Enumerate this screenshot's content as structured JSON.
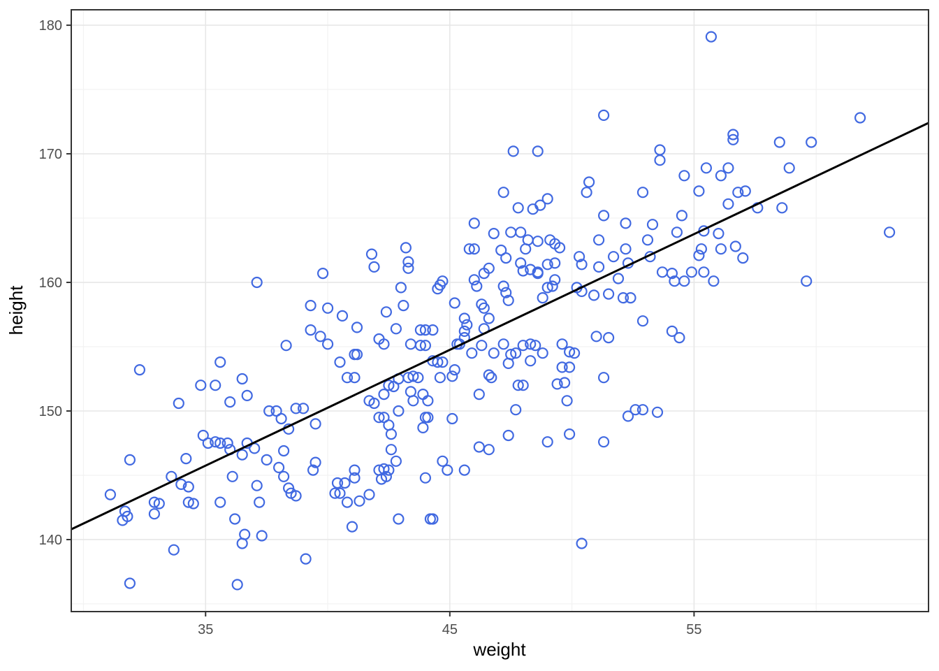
{
  "chart_data": {
    "type": "scatter",
    "title": "",
    "xlabel": "weight",
    "ylabel": "height",
    "legend": null,
    "grid": true,
    "xlim": [
      29.5,
      64.6
    ],
    "ylim": [
      134.4,
      181.2
    ],
    "x_major_ticks": [
      35,
      45,
      55
    ],
    "x_minor_gridlines": [
      30,
      40,
      50,
      60
    ],
    "y_major_ticks": [
      140,
      150,
      160,
      170,
      180
    ],
    "y_minor_gridlines": [
      135,
      145,
      155,
      165,
      175
    ],
    "colors": {
      "point_stroke": "#4169e1",
      "regression_line": "#000000",
      "panel_border": "#333333",
      "grid_major": "#e7e7e7",
      "grid_minor": "#f2f2f2",
      "tick_mark": "#333333",
      "tick_label": "#4d4d4d",
      "axis_title": "#000000",
      "background": "#ffffff"
    },
    "regression_line": {
      "x1": 29.5,
      "y1": 140.8,
      "x2": 64.6,
      "y2": 172.4
    },
    "points": [
      [
        51.3,
        173.0
      ],
      [
        47.6,
        170.2
      ],
      [
        48.6,
        170.2
      ],
      [
        55.7,
        179.1
      ],
      [
        56.6,
        171.5
      ],
      [
        56.6,
        171.1
      ],
      [
        58.5,
        170.9
      ],
      [
        59.8,
        170.9
      ],
      [
        61.8,
        172.8
      ],
      [
        53.6,
        170.3
      ],
      [
        53.6,
        169.5
      ],
      [
        37.1,
        160.0
      ],
      [
        39.8,
        160.7
      ],
      [
        39.3,
        158.2
      ],
      [
        47.2,
        167.0
      ],
      [
        47.8,
        165.8
      ],
      [
        48.4,
        165.7
      ],
      [
        48.7,
        166.0
      ],
      [
        49.0,
        166.5
      ],
      [
        50.7,
        167.8
      ],
      [
        50.6,
        167.0
      ],
      [
        52.9,
        167.0
      ],
      [
        51.3,
        165.2
      ],
      [
        52.2,
        164.6
      ],
      [
        46.0,
        164.6
      ],
      [
        46.8,
        163.8
      ],
      [
        47.5,
        163.9
      ],
      [
        47.9,
        163.9
      ],
      [
        48.2,
        163.3
      ],
      [
        48.6,
        163.2
      ],
      [
        49.1,
        163.3
      ],
      [
        49.3,
        163.0
      ],
      [
        49.5,
        162.7
      ],
      [
        51.1,
        163.3
      ],
      [
        43.2,
        162.7
      ],
      [
        41.8,
        162.2
      ],
      [
        41.9,
        161.2
      ],
      [
        43.3,
        161.6
      ],
      [
        43.3,
        161.1
      ],
      [
        45.8,
        162.6
      ],
      [
        46.0,
        162.6
      ],
      [
        47.1,
        162.5
      ],
      [
        47.3,
        161.9
      ],
      [
        48.1,
        162.6
      ],
      [
        50.3,
        162.0
      ],
      [
        50.4,
        161.4
      ],
      [
        51.1,
        161.2
      ],
      [
        51.7,
        162.0
      ],
      [
        52.2,
        162.6
      ],
      [
        52.3,
        161.5
      ],
      [
        46.6,
        161.1
      ],
      [
        46.4,
        160.7
      ],
      [
        47.9,
        161.5
      ],
      [
        48.0,
        160.9
      ],
      [
        48.3,
        161.0
      ],
      [
        48.6,
        160.7
      ],
      [
        48.6,
        160.8
      ],
      [
        49.0,
        161.4
      ],
      [
        49.3,
        161.5
      ],
      [
        44.7,
        160.1
      ],
      [
        44.6,
        159.8
      ],
      [
        44.5,
        159.5
      ],
      [
        46.0,
        160.2
      ],
      [
        46.1,
        159.7
      ],
      [
        47.2,
        159.7
      ],
      [
        47.3,
        159.2
      ],
      [
        47.4,
        158.6
      ],
      [
        48.8,
        158.8
      ],
      [
        49.0,
        159.6
      ],
      [
        49.2,
        159.7
      ],
      [
        49.3,
        160.2
      ],
      [
        50.2,
        159.6
      ],
      [
        50.4,
        159.3
      ],
      [
        50.9,
        159.0
      ],
      [
        51.5,
        159.1
      ],
      [
        51.9,
        160.3
      ],
      [
        52.1,
        158.8
      ],
      [
        52.4,
        158.8
      ],
      [
        43.0,
        159.6
      ],
      [
        43.1,
        158.2
      ],
      [
        45.2,
        158.4
      ],
      [
        46.3,
        158.3
      ],
      [
        46.4,
        158.0
      ],
      [
        55.5,
        168.9
      ],
      [
        56.4,
        168.9
      ],
      [
        56.1,
        168.3
      ],
      [
        54.6,
        168.3
      ],
      [
        58.9,
        168.9
      ],
      [
        55.2,
        167.1
      ],
      [
        56.8,
        167.0
      ],
      [
        57.1,
        167.1
      ],
      [
        56.4,
        166.1
      ],
      [
        57.6,
        165.8
      ],
      [
        58.6,
        165.8
      ],
      [
        54.5,
        165.2
      ],
      [
        53.3,
        164.5
      ],
      [
        54.3,
        163.9
      ],
      [
        55.4,
        164.0
      ],
      [
        56.0,
        163.8
      ],
      [
        53.1,
        163.3
      ],
      [
        63.0,
        163.9
      ],
      [
        55.3,
        162.6
      ],
      [
        56.1,
        162.6
      ],
      [
        56.7,
        162.8
      ],
      [
        55.2,
        162.1
      ],
      [
        57.0,
        161.9
      ],
      [
        53.2,
        162.0
      ],
      [
        53.7,
        160.8
      ],
      [
        54.1,
        160.7
      ],
      [
        54.2,
        160.1
      ],
      [
        54.6,
        160.1
      ],
      [
        54.9,
        160.8
      ],
      [
        55.4,
        160.8
      ],
      [
        55.8,
        160.1
      ],
      [
        59.6,
        160.1
      ],
      [
        32.3,
        153.2
      ],
      [
        35.6,
        153.8
      ],
      [
        36.5,
        152.5
      ],
      [
        34.8,
        152.0
      ],
      [
        35.4,
        152.0
      ],
      [
        33.9,
        150.6
      ],
      [
        36.0,
        150.7
      ],
      [
        36.7,
        151.2
      ],
      [
        38.3,
        155.1
      ],
      [
        39.3,
        156.3
      ],
      [
        39.7,
        155.8
      ],
      [
        40.0,
        155.2
      ],
      [
        40.0,
        158.0
      ],
      [
        40.6,
        157.4
      ],
      [
        41.1,
        154.4
      ],
      [
        40.8,
        152.6
      ],
      [
        41.1,
        152.6
      ],
      [
        40.5,
        153.8
      ],
      [
        34.9,
        148.1
      ],
      [
        35.1,
        147.5
      ],
      [
        35.4,
        147.6
      ],
      [
        35.6,
        147.5
      ],
      [
        35.9,
        147.5
      ],
      [
        36.0,
        147.0
      ],
      [
        36.5,
        146.6
      ],
      [
        36.7,
        147.5
      ],
      [
        37.0,
        147.1
      ],
      [
        31.9,
        146.2
      ],
      [
        34.2,
        146.3
      ],
      [
        38.2,
        146.9
      ],
      [
        37.6,
        150.0
      ],
      [
        37.9,
        150.0
      ],
      [
        38.1,
        149.4
      ],
      [
        38.4,
        148.6
      ],
      [
        38.7,
        150.2
      ],
      [
        39.0,
        150.2
      ],
      [
        39.5,
        149.0
      ],
      [
        42.4,
        157.7
      ],
      [
        42.8,
        156.4
      ],
      [
        42.1,
        155.6
      ],
      [
        42.3,
        155.2
      ],
      [
        41.2,
        156.5
      ],
      [
        41.2,
        154.4
      ],
      [
        43.4,
        155.2
      ],
      [
        43.8,
        156.3
      ],
      [
        44.0,
        156.3
      ],
      [
        44.3,
        156.3
      ],
      [
        43.8,
        155.1
      ],
      [
        44.0,
        155.1
      ],
      [
        43.3,
        152.6
      ],
      [
        43.5,
        152.7
      ],
      [
        43.7,
        152.6
      ],
      [
        42.9,
        152.5
      ],
      [
        42.5,
        152.0
      ],
      [
        42.7,
        151.9
      ],
      [
        42.3,
        151.3
      ],
      [
        41.7,
        150.8
      ],
      [
        41.9,
        150.6
      ],
      [
        42.1,
        149.5
      ],
      [
        42.3,
        149.5
      ],
      [
        42.5,
        148.9
      ],
      [
        42.6,
        148.2
      ],
      [
        42.9,
        150.0
      ],
      [
        42.6,
        147.0
      ],
      [
        43.4,
        151.5
      ],
      [
        43.5,
        150.8
      ],
      [
        43.9,
        151.3
      ],
      [
        44.1,
        150.8
      ],
      [
        44.0,
        149.5
      ],
      [
        44.1,
        149.5
      ],
      [
        43.9,
        148.7
      ],
      [
        44.3,
        153.9
      ],
      [
        44.5,
        153.8
      ],
      [
        44.7,
        153.8
      ],
      [
        44.6,
        152.6
      ],
      [
        45.1,
        152.7
      ],
      [
        45.2,
        153.2
      ],
      [
        45.1,
        149.4
      ],
      [
        45.6,
        157.2
      ],
      [
        45.7,
        156.7
      ],
      [
        45.6,
        156.2
      ],
      [
        45.6,
        155.7
      ],
      [
        45.4,
        155.2
      ],
      [
        45.3,
        155.2
      ],
      [
        45.9,
        154.5
      ],
      [
        46.3,
        155.1
      ],
      [
        46.4,
        156.4
      ],
      [
        46.6,
        157.2
      ],
      [
        46.8,
        154.5
      ],
      [
        46.2,
        151.3
      ],
      [
        46.6,
        152.8
      ],
      [
        46.7,
        152.6
      ],
      [
        47.2,
        155.2
      ],
      [
        47.4,
        153.7
      ],
      [
        47.5,
        154.4
      ],
      [
        47.7,
        154.5
      ],
      [
        48.0,
        155.1
      ],
      [
        48.3,
        155.2
      ],
      [
        48.5,
        155.1
      ],
      [
        48.3,
        153.9
      ],
      [
        48.8,
        154.5
      ],
      [
        47.7,
        150.1
      ],
      [
        47.8,
        152.0
      ],
      [
        48.0,
        152.0
      ],
      [
        46.2,
        147.2
      ],
      [
        46.6,
        147.0
      ],
      [
        47.4,
        148.1
      ],
      [
        49.0,
        147.6
      ],
      [
        49.6,
        155.2
      ],
      [
        49.9,
        154.6
      ],
      [
        50.1,
        154.5
      ],
      [
        49.6,
        153.4
      ],
      [
        49.9,
        153.4
      ],
      [
        49.4,
        152.1
      ],
      [
        49.7,
        152.2
      ],
      [
        49.8,
        150.8
      ],
      [
        49.9,
        148.2
      ],
      [
        51.0,
        155.8
      ],
      [
        51.5,
        155.7
      ],
      [
        51.3,
        152.6
      ],
      [
        51.3,
        147.6
      ],
      [
        52.9,
        157.0
      ],
      [
        52.6,
        150.1
      ],
      [
        52.3,
        149.6
      ],
      [
        52.9,
        150.1
      ],
      [
        54.1,
        156.2
      ],
      [
        54.4,
        155.7
      ],
      [
        53.5,
        149.9
      ],
      [
        31.1,
        143.5
      ],
      [
        31.7,
        142.2
      ],
      [
        31.8,
        141.8
      ],
      [
        31.6,
        141.5
      ],
      [
        31.9,
        136.6
      ],
      [
        32.9,
        142.9
      ],
      [
        33.1,
        142.8
      ],
      [
        32.9,
        142.0
      ],
      [
        33.6,
        144.9
      ],
      [
        33.7,
        139.2
      ],
      [
        34.0,
        144.3
      ],
      [
        34.3,
        144.1
      ],
      [
        34.3,
        142.9
      ],
      [
        34.5,
        142.8
      ],
      [
        35.6,
        142.9
      ],
      [
        36.1,
        144.9
      ],
      [
        36.2,
        141.6
      ],
      [
        36.6,
        140.4
      ],
      [
        36.5,
        139.7
      ],
      [
        37.3,
        140.3
      ],
      [
        37.1,
        144.2
      ],
      [
        37.2,
        142.9
      ],
      [
        37.5,
        146.2
      ],
      [
        38.0,
        145.6
      ],
      [
        38.2,
        144.9
      ],
      [
        38.4,
        144.0
      ],
      [
        38.5,
        143.6
      ],
      [
        38.7,
        143.4
      ],
      [
        39.5,
        146.0
      ],
      [
        39.4,
        145.4
      ],
      [
        40.4,
        144.4
      ],
      [
        40.7,
        144.4
      ],
      [
        40.3,
        143.6
      ],
      [
        40.5,
        143.6
      ],
      [
        40.8,
        142.9
      ],
      [
        39.1,
        138.5
      ],
      [
        41.0,
        141.0
      ],
      [
        36.3,
        136.5
      ],
      [
        41.1,
        145.4
      ],
      [
        41.1,
        144.8
      ],
      [
        42.1,
        145.4
      ],
      [
        42.3,
        145.5
      ],
      [
        42.5,
        145.4
      ],
      [
        42.2,
        144.7
      ],
      [
        42.4,
        144.9
      ],
      [
        42.8,
        146.1
      ],
      [
        44.7,
        146.1
      ],
      [
        44.9,
        145.4
      ],
      [
        45.6,
        145.4
      ],
      [
        44.0,
        144.8
      ],
      [
        41.7,
        143.5
      ],
      [
        42.9,
        141.6
      ],
      [
        44.2,
        141.6
      ],
      [
        44.3,
        141.6
      ],
      [
        50.4,
        139.7
      ],
      [
        41.3,
        143.0
      ]
    ]
  }
}
